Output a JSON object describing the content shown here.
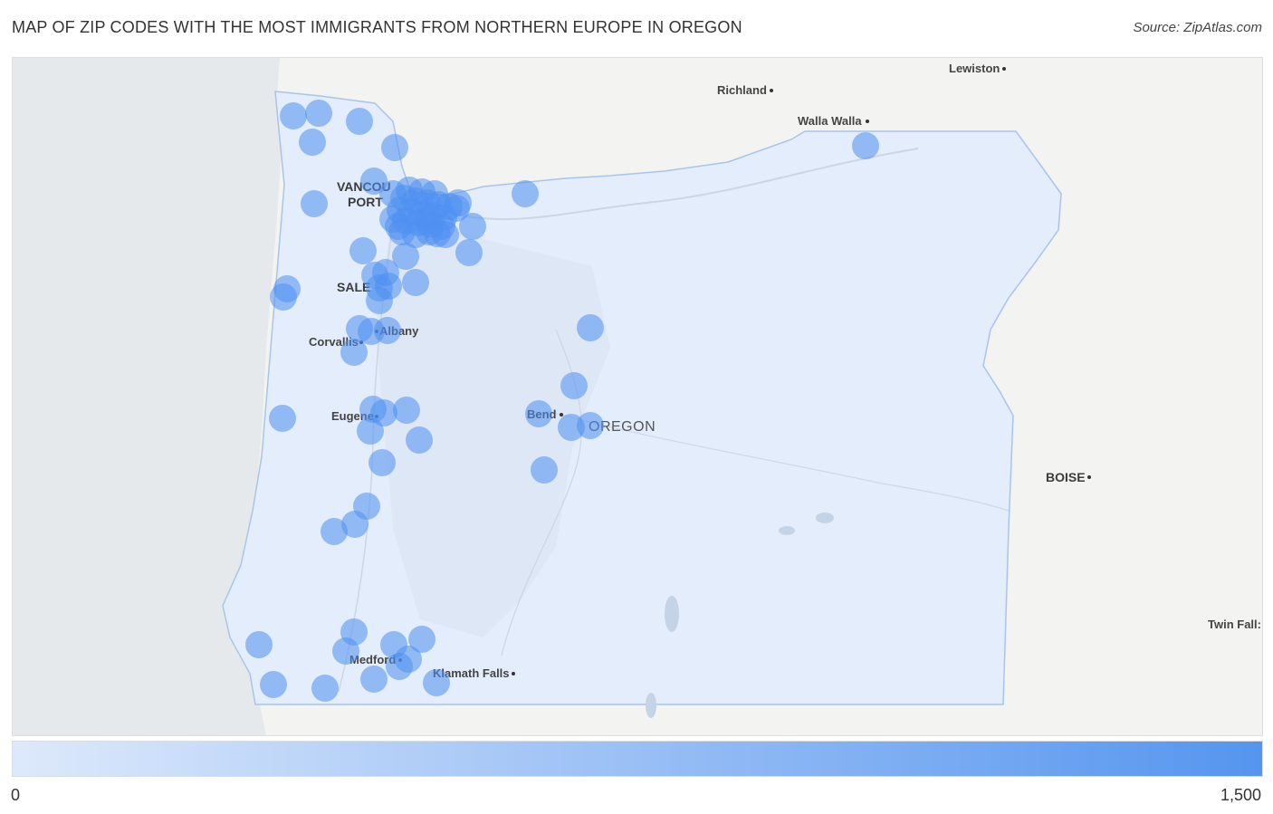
{
  "title": "MAP OF ZIP CODES WITH THE MOST IMMIGRANTS FROM NORTHERN EUROPE IN OREGON",
  "source": "Source: ZipAtlas.com",
  "legend": {
    "min_label": "0",
    "max_label": "1,500",
    "color_low": "#dde9fb",
    "color_high": "#5595ef"
  },
  "map": {
    "state_label": "OREGON",
    "cities": [
      {
        "name": "Lewiston",
        "dot": true
      },
      {
        "name": "Richland",
        "dot": true
      },
      {
        "name": "Walla Walla",
        "dot": true
      },
      {
        "name": "VANCOU",
        "dot": false
      },
      {
        "name": "PORT",
        "dot": false
      },
      {
        "name": "SALE",
        "dot": false
      },
      {
        "name": "Albany",
        "dot": true
      },
      {
        "name": "Corvallis",
        "dot": true
      },
      {
        "name": "Eugene",
        "dot": true
      },
      {
        "name": "Bend",
        "dot": true
      },
      {
        "name": "BOISE",
        "dot": true
      },
      {
        "name": "Twin Fall:",
        "dot": false
      },
      {
        "name": "Medford",
        "dot": true
      },
      {
        "name": "Klamath Falls",
        "dot": true
      }
    ],
    "bubble_color": "#4f8ff0"
  }
}
